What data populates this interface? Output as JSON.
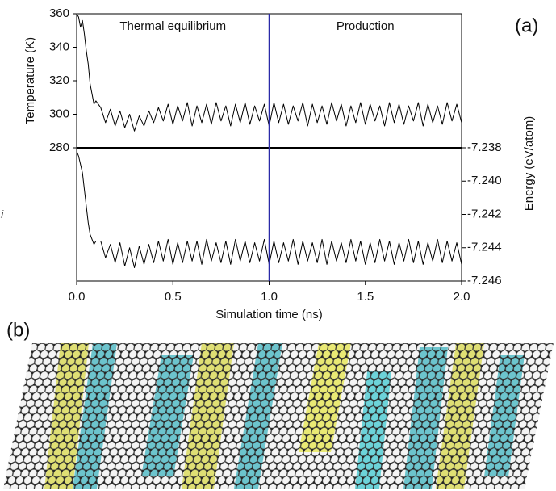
{
  "chart_data": {
    "type": "line",
    "panel_label": "(a)",
    "xlabel": "Simulation time (ns)",
    "ylabel": "Temperature (K)",
    "y2label": "Energy (eV/atom)",
    "annotations": [
      "Thermal equilibrium",
      "Production"
    ],
    "divider_x": 1,
    "divider_color": "#2a2aa8",
    "xlim": [
      0,
      2
    ],
    "xticks": [
      {
        "value": 0,
        "label": "0.0"
      },
      0.5,
      {
        "value": 1,
        "label": "1.0"
      },
      1.5,
      {
        "value": 2,
        "label": "2.0"
      }
    ],
    "ylim": [
      280,
      360
    ],
    "yticks": [
      280,
      300,
      320,
      340,
      360
    ],
    "y2lim": [
      -7.246,
      -7.238
    ],
    "y2ticks": [
      -7.238,
      {
        "value": -7.24,
        "label": "-7.240"
      },
      -7.242,
      -7.244,
      -7.246
    ],
    "x": [
      0,
      0.01,
      0.02,
      0.03,
      0.04,
      0.05,
      0.06,
      0.07,
      0.08,
      0.09,
      0.1,
      0.125,
      0.15,
      0.175,
      0.2,
      0.225,
      0.25,
      0.275,
      0.3,
      0.325,
      0.35,
      0.375,
      0.4,
      0.425,
      0.45,
      0.475,
      0.5,
      0.525,
      0.55,
      0.575,
      0.6,
      0.625,
      0.65,
      0.675,
      0.7,
      0.725,
      0.75,
      0.775,
      0.8,
      0.825,
      0.85,
      0.875,
      0.9,
      0.925,
      0.95,
      0.975,
      1,
      1.025,
      1.05,
      1.075,
      1.1,
      1.125,
      1.15,
      1.175,
      1.2,
      1.225,
      1.25,
      1.275,
      1.3,
      1.325,
      1.35,
      1.375,
      1.4,
      1.425,
      1.45,
      1.475,
      1.5,
      1.525,
      1.55,
      1.575,
      1.6,
      1.625,
      1.65,
      1.675,
      1.7,
      1.725,
      1.75,
      1.775,
      1.8,
      1.825,
      1.85,
      1.875,
      1.9,
      1.925,
      1.95,
      1.975,
      2
    ],
    "series": [
      {
        "color": "#000000",
        "values": [
          360,
          358,
          352,
          356,
          348,
          338,
          330,
          318,
          312,
          306,
          308,
          304,
          295,
          303,
          293,
          302,
          292,
          300,
          290,
          299,
          293,
          302,
          295,
          304,
          296,
          306,
          294,
          305,
          296,
          307,
          293,
          305,
          295,
          306,
          294,
          307,
          296,
          305,
          293,
          306,
          295,
          307,
          294,
          305,
          296,
          306,
          293,
          307,
          295,
          306,
          294,
          305,
          296,
          307,
          293,
          306,
          295,
          305,
          294,
          307,
          296,
          306,
          293,
          305,
          295,
          307,
          294,
          306,
          296,
          305,
          293,
          307,
          295,
          306,
          294,
          305,
          296,
          307,
          293,
          306,
          295,
          305,
          294,
          307,
          296,
          306,
          295
        ]
      },
      {
        "color": "#000000",
        "axis": "y2",
        "values": [
          -7.2382,
          -7.2385,
          -7.239,
          -7.2395,
          -7.2405,
          -7.2415,
          -7.2425,
          -7.2432,
          -7.2435,
          -7.2438,
          -7.2436,
          -7.2436,
          -7.2446,
          -7.2438,
          -7.2449,
          -7.2437,
          -7.2451,
          -7.244,
          -7.2452,
          -7.2439,
          -7.245,
          -7.2438,
          -7.2449,
          -7.2436,
          -7.2448,
          -7.2435,
          -7.245,
          -7.2437,
          -7.2449,
          -7.2436,
          -7.2448,
          -7.2436,
          -7.245,
          -7.2435,
          -7.2448,
          -7.2437,
          -7.2449,
          -7.2436,
          -7.245,
          -7.2435,
          -7.2448,
          -7.2436,
          -7.2449,
          -7.2437,
          -7.2448,
          -7.2435,
          -7.245,
          -7.2436,
          -7.2449,
          -7.2437,
          -7.2448,
          -7.2435,
          -7.245,
          -7.2436,
          -7.2448,
          -7.2437,
          -7.2449,
          -7.2435,
          -7.245,
          -7.2436,
          -7.2448,
          -7.2437,
          -7.2449,
          -7.2435,
          -7.2448,
          -7.2436,
          -7.245,
          -7.2437,
          -7.2449,
          -7.2435,
          -7.2448,
          -7.2436,
          -7.245,
          -7.2437,
          -7.2448,
          -7.2435,
          -7.2449,
          -7.2436,
          -7.245,
          -7.2437,
          -7.2448,
          -7.2435,
          -7.2449,
          -7.2436,
          -7.2448,
          -7.2437,
          -7.245
        ]
      }
    ]
  },
  "side_note": "j",
  "panel_b_label": "(b)"
}
